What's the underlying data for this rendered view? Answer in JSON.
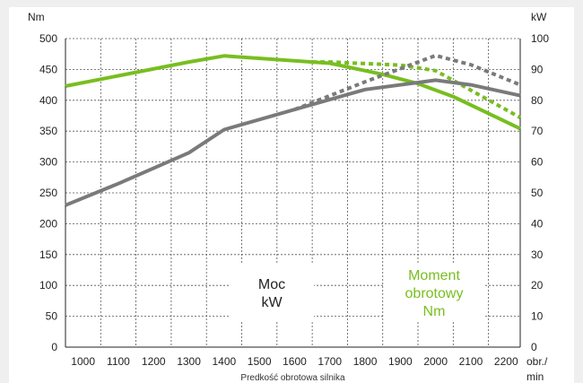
{
  "chart_data": {
    "type": "line",
    "xlabel": "Predkość obrotowa silnika",
    "x_unit": "obr./\nmin",
    "x": [
      1000,
      1100,
      1200,
      1300,
      1400,
      1500,
      1600,
      1700,
      1800,
      1900,
      2000,
      2100,
      2200
    ],
    "x_range": [
      950,
      2240
    ],
    "y_left": {
      "label": "Nm",
      "range": [
        0,
        500
      ],
      "ticks": [
        0,
        50,
        100,
        150,
        200,
        250,
        300,
        350,
        400,
        450,
        500
      ]
    },
    "y_right": {
      "label": "kW",
      "range": [
        0,
        100
      ],
      "ticks": [
        0,
        10,
        20,
        30,
        40,
        50,
        60,
        70,
        80,
        90,
        100
      ]
    },
    "grid": true,
    "series": [
      {
        "name": "Moment obrotowy Nm",
        "axis": "left",
        "color": "#78be20",
        "style": "solid",
        "points": [
          [
            950,
            423
          ],
          [
            1300,
            462
          ],
          [
            1400,
            472
          ],
          [
            1700,
            460
          ],
          [
            1850,
            442
          ],
          [
            1950,
            427
          ],
          [
            2050,
            406
          ],
          [
            2240,
            354
          ]
        ]
      },
      {
        "axis": "left",
        "color": "#78be20",
        "style": "dashed",
        "points": [
          [
            1650,
            462
          ],
          [
            1700,
            462
          ],
          [
            1900,
            457
          ],
          [
            2000,
            448
          ],
          [
            2240,
            372
          ]
        ]
      },
      {
        "name": "Moc kW",
        "axis": "right",
        "color": "#7a7a7a",
        "style": "solid",
        "points": [
          [
            950,
            46
          ],
          [
            1100,
            53
          ],
          [
            1300,
            63
          ],
          [
            1400,
            70.5
          ],
          [
            1600,
            77
          ],
          [
            1800,
            83.5
          ],
          [
            2000,
            86.5
          ],
          [
            2100,
            85
          ],
          [
            2240,
            81.5
          ]
        ]
      },
      {
        "axis": "right",
        "color": "#7a7a7a",
        "style": "dashed",
        "points": [
          [
            1600,
            77
          ],
          [
            1800,
            86
          ],
          [
            2000,
            94.5
          ],
          [
            2100,
            91.5
          ],
          [
            2240,
            85
          ]
        ]
      }
    ],
    "legend": [
      {
        "text": "Moc\nkW",
        "color": "#222222"
      },
      {
        "text": "Moment\nobrotowy\nNm",
        "color": "#78be20"
      }
    ]
  }
}
